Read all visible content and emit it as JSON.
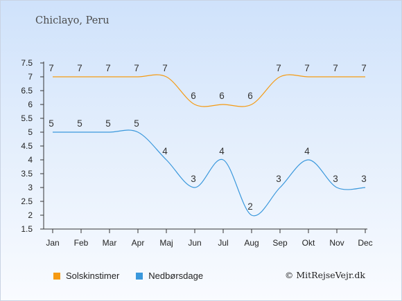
{
  "location": "Chiclayo, Peru",
  "credit": "© MitRejseVejr.dk",
  "colors": {
    "sunshine": "#f59a12",
    "precipitation": "#3a98dc",
    "axis": "#333333"
  },
  "chart_data": {
    "type": "line",
    "title": "Chiclayo, Peru",
    "xlabel": "",
    "ylabel": "",
    "categories": [
      "Jan",
      "Feb",
      "Mar",
      "Apr",
      "Maj",
      "Jun",
      "Jul",
      "Aug",
      "Sep",
      "Okt",
      "Nov",
      "Dec"
    ],
    "ylim": [
      1.5,
      7.5
    ],
    "yticks": [
      "1.5",
      "2",
      "2.5",
      "3",
      "3.5",
      "4",
      "4.5",
      "5",
      "5.5",
      "6",
      "6.5",
      "7",
      "7.5"
    ],
    "grid": false,
    "legend": "bottom-left",
    "series": [
      {
        "name": "Solskinstimer",
        "color": "#f59a12",
        "values": [
          7,
          7,
          7,
          7,
          7,
          6,
          6,
          6,
          7,
          7,
          7,
          7
        ]
      },
      {
        "name": "Nedbørsdage",
        "color": "#3a98dc",
        "values": [
          5,
          5,
          5,
          5,
          4,
          3,
          4,
          2,
          3,
          4,
          3,
          3
        ]
      }
    ]
  }
}
